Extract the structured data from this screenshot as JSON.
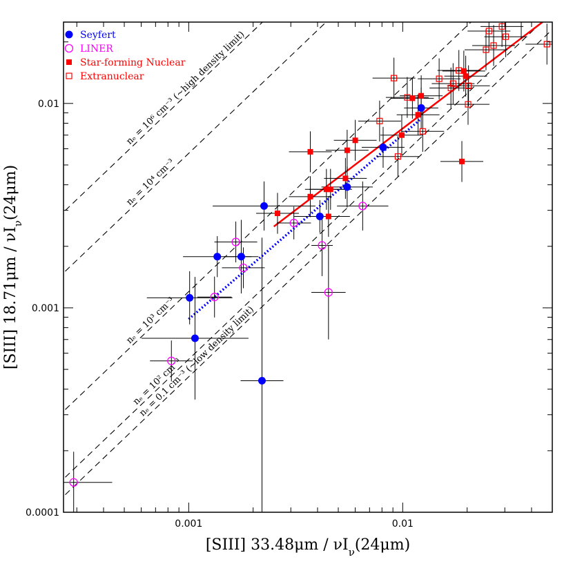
{
  "chart_data": {
    "type": "scatter",
    "title": "",
    "xlabel": "[SIII] 33.48μm / νIν(24μm)",
    "ylabel": "[SIII] 18.71μm / νIν(24μm)",
    "x_scale": "log",
    "y_scale": "log",
    "xlim": [
      0.00026,
      0.05
    ],
    "ylim": [
      0.0001,
      0.025
    ],
    "x_ticks": [
      {
        "value": 0.001,
        "label": "0.001"
      },
      {
        "value": 0.01,
        "label": "0.01"
      }
    ],
    "y_ticks": [
      {
        "value": 0.0001,
        "label": "0.0001"
      },
      {
        "value": 0.001,
        "label": "0.001"
      },
      {
        "value": 0.01,
        "label": "0.01"
      }
    ],
    "grid": false,
    "legend_position": "top-left",
    "legend": [
      {
        "label": "Seyfert",
        "color": "#0000ff",
        "marker": "filled-circle"
      },
      {
        "label": "LINER",
        "color": "#ff00ff",
        "marker": "open-circle"
      },
      {
        "label": "Star-forming Nuclear",
        "color": "#ff0000",
        "marker": "filled-square"
      },
      {
        "label": "Extranuclear",
        "color": "#ff0000",
        "marker": "open-square"
      }
    ],
    "density_lines": [
      {
        "label": "nₑ = 10⁶ cm⁻³ (~high density limit)",
        "ratio": 11.3
      },
      {
        "label": "nₑ = 10⁴ cm⁻³",
        "ratio": 5.7
      },
      {
        "label": "nₑ = 10³ cm⁻³",
        "ratio": 1.2
      },
      {
        "label": "nₑ = 10² cm⁻³",
        "ratio": 0.56
      },
      {
        "label": "nₑ = 0.1 cm⁻³ (~low density limit)",
        "ratio": 0.46
      }
    ],
    "fit_lines": [
      {
        "name": "star-forming fit",
        "color": "#ff0000",
        "style": "solid",
        "x": [
          0.0025,
          0.045
        ],
        "y": [
          0.0025,
          0.025
        ]
      },
      {
        "name": "seyfert fit",
        "color": "#0000ff",
        "style": "dotted",
        "x": [
          0.001,
          0.012
        ],
        "y": [
          0.00088,
          0.0083
        ]
      }
    ],
    "series": [
      {
        "name": "Seyfert",
        "points": [
          {
            "x": 0.00101,
            "y": 0.00112,
            "ex": 0.2,
            "ey": 0.13
          },
          {
            "x": 0.00107,
            "y": 0.00071,
            "ex": 0.25,
            "ey": 0.3
          },
          {
            "x": 0.00136,
            "y": 0.00178,
            "ex": 0.16,
            "ey": 0.1
          },
          {
            "x": 0.00176,
            "y": 0.00178,
            "ex": 0.08,
            "ey": 0.18
          },
          {
            "x": 0.00225,
            "y": 0.00315,
            "ex": 0.24,
            "ey": 0.12
          },
          {
            "x": 0.0022,
            "y": 0.00044,
            "ex": 0.1,
            "ey": 0.7
          },
          {
            "x": 0.0041,
            "y": 0.0028,
            "ex": 0.12,
            "ey": 0.08
          },
          {
            "x": 0.0055,
            "y": 0.0039,
            "ex": 0.12,
            "ey": 0.1
          },
          {
            "x": 0.0081,
            "y": 0.0061,
            "ex": 0.1,
            "ey": 0.1
          },
          {
            "x": 0.0122,
            "y": 0.0095,
            "ex": 0.08,
            "ey": 0.1
          }
        ]
      },
      {
        "name": "LINER",
        "points": [
          {
            "x": 0.00029,
            "y": 0.00014,
            "ex": 0.18,
            "ey": 0.15
          },
          {
            "x": 0.00083,
            "y": 0.00055,
            "ex": 0.1,
            "ey": 0.1
          },
          {
            "x": 0.00132,
            "y": 0.00113,
            "ex": 0.08,
            "ey": 0.1
          },
          {
            "x": 0.00166,
            "y": 0.0021,
            "ex": 0.1,
            "ey": 0.1
          },
          {
            "x": 0.0018,
            "y": 0.00157,
            "ex": 0.1,
            "ey": 0.1
          },
          {
            "x": 0.0031,
            "y": 0.0026,
            "ex": 0.08,
            "ey": 0.08
          },
          {
            "x": 0.0042,
            "y": 0.00202,
            "ex": 0.05,
            "ey": 0.15
          },
          {
            "x": 0.0045,
            "y": 0.00119,
            "ex": 0.08,
            "ey": 0.23
          },
          {
            "x": 0.0065,
            "y": 0.00315,
            "ex": 0.12,
            "ey": 0.12
          }
        ]
      },
      {
        "name": "Star-forming Nuclear",
        "points": [
          {
            "x": 0.0026,
            "y": 0.0029,
            "ex": 0.1,
            "ey": 0.1
          },
          {
            "x": 0.0037,
            "y": 0.0035,
            "ex": 0.1,
            "ey": 0.1
          },
          {
            "x": 0.0037,
            "y": 0.0058,
            "ex": 0.1,
            "ey": 0.1
          },
          {
            "x": 0.0044,
            "y": 0.0038,
            "ex": 0.1,
            "ey": 0.1
          },
          {
            "x": 0.0045,
            "y": 0.0028,
            "ex": 0.1,
            "ey": 0.1
          },
          {
            "x": 0.0046,
            "y": 0.0038,
            "ex": 0.1,
            "ey": 0.1
          },
          {
            "x": 0.0054,
            "y": 0.0043,
            "ex": 0.1,
            "ey": 0.1
          },
          {
            "x": 0.0055,
            "y": 0.0059,
            "ex": 0.1,
            "ey": 0.1
          },
          {
            "x": 0.006,
            "y": 0.0066,
            "ex": 0.1,
            "ey": 0.1
          },
          {
            "x": 0.0099,
            "y": 0.007,
            "ex": 0.1,
            "ey": 0.1
          },
          {
            "x": 0.0111,
            "y": 0.0106,
            "ex": 0.1,
            "ey": 0.1
          },
          {
            "x": 0.0118,
            "y": 0.0088,
            "ex": 0.1,
            "ey": 0.1
          },
          {
            "x": 0.0122,
            "y": 0.0109,
            "ex": 0.1,
            "ey": 0.1
          },
          {
            "x": 0.0193,
            "y": 0.0144,
            "ex": 0.1,
            "ey": 0.1
          },
          {
            "x": 0.0197,
            "y": 0.0136,
            "ex": 0.1,
            "ey": 0.1
          },
          {
            "x": 0.0189,
            "y": 0.0052,
            "ex": 0.1,
            "ey": 0.1
          }
        ]
      },
      {
        "name": "Extranuclear",
        "points": [
          {
            "x": 0.0078,
            "y": 0.0082,
            "ex": 0.1,
            "ey": 0.1
          },
          {
            "x": 0.0091,
            "y": 0.0133,
            "ex": 0.1,
            "ey": 0.1
          },
          {
            "x": 0.0095,
            "y": 0.0055,
            "ex": 0.1,
            "ey": 0.1
          },
          {
            "x": 0.0105,
            "y": 0.0107,
            "ex": 0.1,
            "ey": 0.1
          },
          {
            "x": 0.0124,
            "y": 0.0073,
            "ex": 0.1,
            "ey": 0.1
          },
          {
            "x": 0.0148,
            "y": 0.0132,
            "ex": 0.1,
            "ey": 0.1
          },
          {
            "x": 0.0168,
            "y": 0.0119,
            "ex": 0.1,
            "ey": 0.1
          },
          {
            "x": 0.0172,
            "y": 0.0125,
            "ex": 0.1,
            "ey": 0.1
          },
          {
            "x": 0.0183,
            "y": 0.0145,
            "ex": 0.1,
            "ey": 0.1
          },
          {
            "x": 0.0202,
            "y": 0.0099,
            "ex": 0.1,
            "ey": 0.1
          },
          {
            "x": 0.0203,
            "y": 0.0122,
            "ex": 0.1,
            "ey": 0.1
          },
          {
            "x": 0.0245,
            "y": 0.0183,
            "ex": 0.1,
            "ey": 0.1
          },
          {
            "x": 0.0253,
            "y": 0.0226,
            "ex": 0.1,
            "ey": 0.1
          },
          {
            "x": 0.0266,
            "y": 0.0192,
            "ex": 0.1,
            "ey": 0.1
          },
          {
            "x": 0.0291,
            "y": 0.0238,
            "ex": 0.1,
            "ey": 0.1
          },
          {
            "x": 0.0303,
            "y": 0.0212,
            "ex": 0.1,
            "ey": 0.1
          },
          {
            "x": 0.0358,
            "y": 0.0261,
            "ex": 0.1,
            "ey": 0.1
          },
          {
            "x": 0.0472,
            "y": 0.0195,
            "ex": 0.1,
            "ey": 0.1
          }
        ]
      }
    ]
  }
}
